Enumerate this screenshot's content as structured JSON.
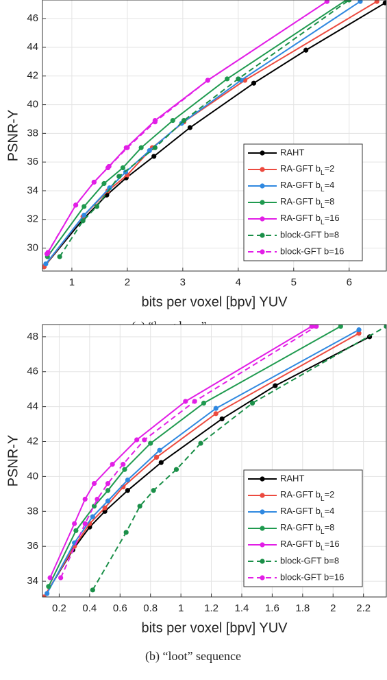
{
  "chart_data": [
    {
      "type": "line",
      "title": "(a) “longdress” sequence",
      "xlabel": "bits per voxel [bpv] YUV",
      "ylabel": "PSNR-Y",
      "xlim": [
        0.47,
        6.67
      ],
      "ylim": [
        28.4,
        47.3
      ],
      "xticks": [
        1,
        2,
        3,
        4,
        5,
        6
      ],
      "yticks": [
        30,
        32,
        34,
        36,
        38,
        40,
        42,
        44,
        46
      ],
      "grid": true,
      "legend": "southeast",
      "series": [
        {
          "name": "RAHT",
          "color": "#000000",
          "dashed": false,
          "x": [
            0.5,
            1.2,
            1.63,
            1.98,
            2.48,
            3.13,
            4.28,
            5.22,
            6.65
          ],
          "values": [
            28.7,
            32.0,
            33.7,
            34.9,
            36.4,
            38.4,
            41.5,
            43.8,
            47.1
          ]
        },
        {
          "name": "RA-GFT bL=2",
          "color": "#ec4a3f",
          "dashed": false,
          "x": [
            0.5,
            1.2,
            1.65,
            2.0,
            2.45,
            3.02,
            4.12,
            6.5
          ],
          "values": [
            28.7,
            32.2,
            34.0,
            35.1,
            37.0,
            38.8,
            41.7,
            47.2
          ]
        },
        {
          "name": "RA-GFT bL=4",
          "color": "#2f88e0",
          "dashed": false,
          "x": [
            0.53,
            1.22,
            1.68,
            1.97,
            2.4,
            2.98,
            4.05,
            6.2
          ],
          "values": [
            28.9,
            32.3,
            34.2,
            35.3,
            36.8,
            38.7,
            41.7,
            47.2
          ]
        },
        {
          "name": "RA-GFT bL=8",
          "color": "#1f9a4f",
          "dashed": false,
          "x": [
            0.56,
            1.22,
            1.58,
            1.92,
            2.25,
            2.82,
            3.8,
            5.95
          ],
          "values": [
            29.4,
            32.9,
            34.5,
            35.6,
            37.0,
            38.9,
            41.8,
            47.3
          ]
        },
        {
          "name": "RA-GFT bL=16",
          "color": "#e21ee6",
          "dashed": false,
          "x": [
            0.57,
            1.07,
            1.4,
            1.67,
            1.98,
            2.5,
            3.45,
            5.6
          ],
          "values": [
            29.7,
            33.0,
            34.6,
            35.7,
            37.0,
            38.9,
            41.7,
            47.2
          ]
        },
        {
          "name": "block-GFT b=8",
          "color": "#1a8f48",
          "dashed": true,
          "x": [
            0.78,
            1.2,
            1.45,
            1.85,
            2.5,
            3.02,
            4.0,
            6.0
          ],
          "values": [
            29.4,
            31.9,
            32.9,
            35.0,
            37.0,
            38.9,
            41.8,
            47.3
          ]
        },
        {
          "name": "block-GFT b=16",
          "color": "#e21ee6",
          "dashed": true,
          "x": [
            0.55,
            1.07,
            1.4,
            1.65,
            2.0,
            2.5,
            3.45,
            5.6
          ],
          "values": [
            29.6,
            33.0,
            34.6,
            35.6,
            37.0,
            38.8,
            41.7,
            47.2
          ]
        }
      ]
    },
    {
      "type": "line",
      "title": "(b) “loot” sequence",
      "xlabel": "bits per voxel [bpv] YUV",
      "ylabel": "PSNR-Y",
      "xlim": [
        0.09,
        2.35
      ],
      "ylim": [
        33.1,
        48.7
      ],
      "xticks": [
        0.2,
        0.4,
        0.6,
        0.8,
        1,
        1.2,
        1.4,
        1.6,
        1.8,
        2,
        2.2
      ],
      "yticks": [
        34,
        36,
        38,
        40,
        42,
        44,
        46,
        48
      ],
      "grid": true,
      "legend": "southeast",
      "series": [
        {
          "name": "RAHT",
          "color": "#000000",
          "dashed": false,
          "x": [
            0.1,
            0.29,
            0.4,
            0.5,
            0.65,
            0.87,
            1.27,
            1.62,
            2.24
          ],
          "values": [
            33.1,
            35.8,
            37.1,
            38.0,
            39.2,
            40.8,
            43.3,
            45.2,
            48.0
          ]
        },
        {
          "name": "RA-GFT bL=2",
          "color": "#ec4a3f",
          "dashed": false,
          "x": [
            0.1,
            0.3,
            0.4,
            0.5,
            0.62,
            0.84,
            1.23,
            2.17
          ],
          "values": [
            33.1,
            36.0,
            37.3,
            38.2,
            39.4,
            41.1,
            43.6,
            48.2
          ]
        },
        {
          "name": "RA-GFT bL=4",
          "color": "#2f88e0",
          "dashed": false,
          "x": [
            0.12,
            0.3,
            0.42,
            0.52,
            0.65,
            0.86,
            1.23,
            2.17
          ],
          "values": [
            33.3,
            36.2,
            37.7,
            38.6,
            39.8,
            41.5,
            43.9,
            48.4
          ]
        },
        {
          "name": "RA-GFT bL=8",
          "color": "#1f9a4f",
          "dashed": false,
          "x": [
            0.13,
            0.31,
            0.43,
            0.52,
            0.63,
            0.8,
            1.15,
            2.05
          ],
          "values": [
            33.7,
            36.9,
            38.3,
            39.2,
            40.4,
            41.9,
            44.2,
            48.6
          ]
        },
        {
          "name": "RA-GFT bL=16",
          "color": "#e21ee6",
          "dashed": false,
          "x": [
            0.14,
            0.3,
            0.37,
            0.43,
            0.55,
            0.71,
            1.03,
            1.86
          ],
          "values": [
            34.2,
            37.3,
            38.7,
            39.6,
            40.7,
            42.1,
            44.3,
            48.6
          ]
        },
        {
          "name": "block-GFT b=8",
          "color": "#1a8f48",
          "dashed": true,
          "x": [
            0.42,
            0.64,
            0.73,
            0.82,
            0.97,
            1.13,
            1.47,
            2.35
          ],
          "values": [
            33.5,
            36.8,
            38.3,
            39.2,
            40.4,
            41.9,
            44.2,
            48.6
          ]
        },
        {
          "name": "block-GFT b=16",
          "color": "#e21ee6",
          "dashed": true,
          "x": [
            0.21,
            0.37,
            0.45,
            0.52,
            0.62,
            0.76,
            1.09,
            1.89
          ],
          "values": [
            34.2,
            37.3,
            38.7,
            39.6,
            40.7,
            42.1,
            44.3,
            48.6
          ]
        }
      ]
    }
  ]
}
